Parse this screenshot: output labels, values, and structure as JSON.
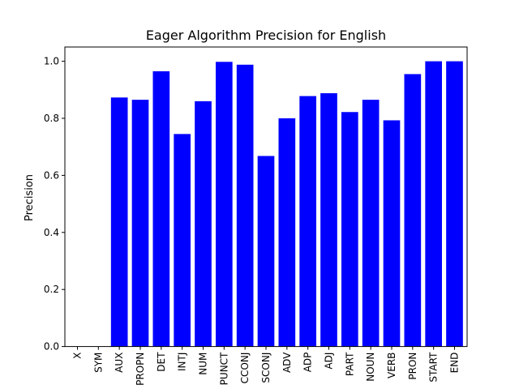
{
  "chart_data": {
    "type": "bar",
    "title": "Eager Algorithm Precision for English",
    "xlabel": "",
    "ylabel": "Precision",
    "categories": [
      "X",
      "SYM",
      "AUX",
      "PROPN",
      "DET",
      "INTJ",
      "NUM",
      "PUNCT",
      "CCONJ",
      "SCONJ",
      "ADV",
      "ADP",
      "ADJ",
      "PART",
      "NOUN",
      "VERB",
      "PRON",
      "START",
      "END"
    ],
    "values": [
      0.0,
      0.0,
      0.873,
      0.865,
      0.965,
      0.745,
      0.86,
      0.998,
      0.988,
      0.668,
      0.8,
      0.878,
      0.888,
      0.822,
      0.865,
      0.793,
      0.955,
      1.0,
      1.0
    ],
    "ylim": [
      0,
      1.05
    ],
    "yticks": [
      "0.0",
      "0.2",
      "0.4",
      "0.6",
      "0.8",
      "1.0"
    ],
    "bar_color": "#0000ff",
    "grid": false,
    "legend": "none"
  }
}
